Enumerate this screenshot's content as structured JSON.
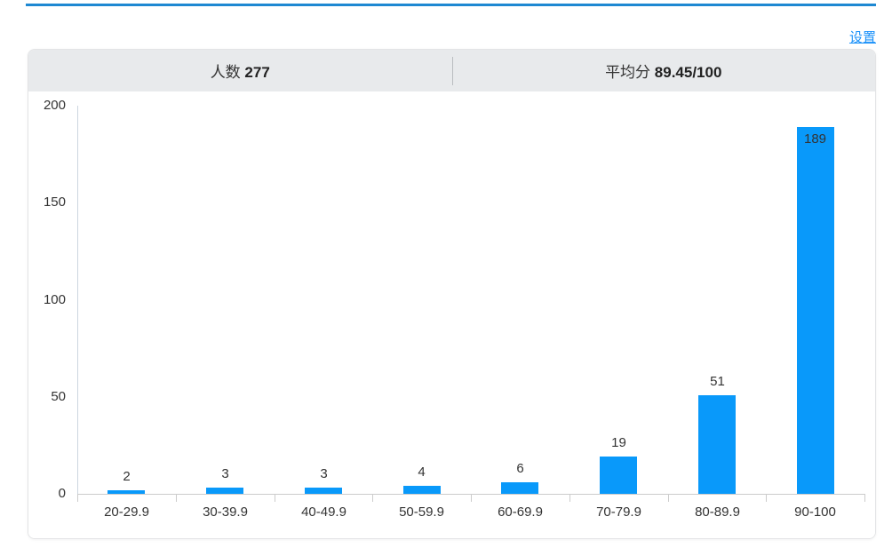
{
  "page": {
    "settings_link": "设置",
    "link_color": "#1890fa",
    "top_line_color": "#1e88d2"
  },
  "summary": {
    "people": {
      "label": "人数",
      "value": "277"
    },
    "average": {
      "label": "平均分",
      "value": "89.45/100"
    }
  },
  "chart_data": {
    "type": "bar",
    "title": "",
    "xlabel": "",
    "ylabel": "",
    "categories": [
      "20-29.9",
      "30-39.9",
      "40-49.9",
      "50-59.9",
      "60-69.9",
      "70-79.9",
      "80-89.9",
      "90-100"
    ],
    "values": [
      2,
      3,
      3,
      4,
      6,
      19,
      51,
      189
    ],
    "ylim": [
      0,
      200
    ],
    "yticks": [
      0,
      50,
      100,
      150,
      200
    ],
    "grid": "off",
    "legend": "none",
    "value_labels": "on",
    "bar_color": "#0999fa",
    "axis_color": "#cccccc",
    "label_color": "#333333"
  }
}
